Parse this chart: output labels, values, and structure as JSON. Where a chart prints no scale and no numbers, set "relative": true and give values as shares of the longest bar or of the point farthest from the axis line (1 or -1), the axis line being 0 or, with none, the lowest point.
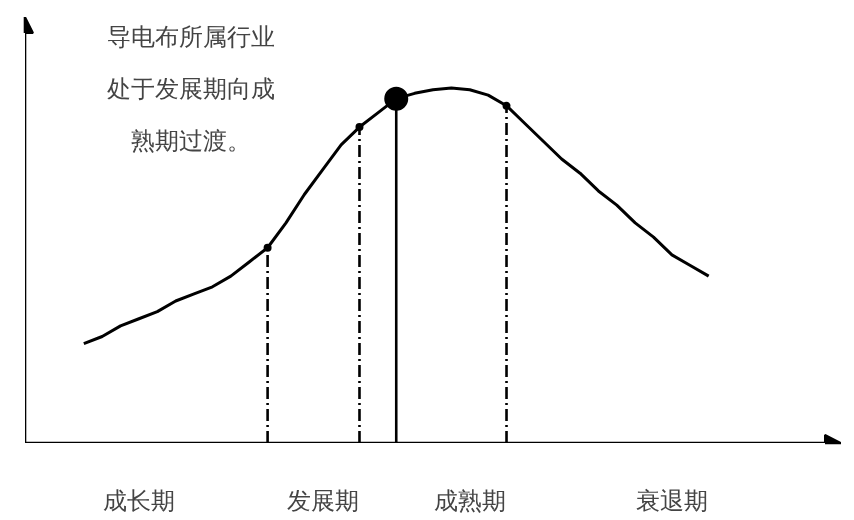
{
  "chart_data": {
    "type": "line",
    "relative": true,
    "categories": [
      null,
      null,
      null,
      "成长期",
      null,
      null,
      null,
      null,
      null,
      null,
      null,
      null,
      null,
      "发展期",
      null,
      null,
      null,
      null,
      null,
      null,
      null,
      "成熟期",
      null,
      null,
      null,
      null,
      null,
      null,
      null,
      null,
      null,
      null,
      "衰退期",
      null,
      null
    ],
    "series": [
      {
        "color": "#000000",
        "line_style": "solid",
        "values": [
          0.28,
          0.3,
          0.33,
          0.35,
          0.37,
          0.4,
          0.42,
          0.44,
          0.47,
          0.51,
          0.55,
          0.62,
          0.7,
          0.77,
          0.84,
          0.89,
          0.93,
          0.97,
          0.985,
          0.995,
          1.0,
          0.995,
          0.98,
          0.95,
          0.9,
          0.85,
          0.8,
          0.76,
          0.71,
          0.67,
          0.62,
          0.58,
          0.53,
          0.5,
          0.47
        ]
      },
      {
        "type": "lollipop",
        "color": "#000000",
        "line_style": "dashed",
        "values": [
          null,
          null,
          null,
          null,
          null,
          null,
          null,
          null,
          null,
          null,
          0.55,
          null,
          null,
          null,
          null,
          0.89,
          null,
          null,
          null,
          null,
          null,
          null,
          null,
          0.95,
          null,
          null,
          null,
          null,
          null,
          null,
          null,
          null,
          null,
          null,
          null
        ]
      },
      {
        "type": "lollipop",
        "color": "#000000",
        "line_style": "solid",
        "marker": "circle",
        "values": [
          null,
          null,
          null,
          null,
          null,
          null,
          null,
          null,
          null,
          null,
          null,
          null,
          null,
          null,
          null,
          null,
          null,
          0.97,
          null,
          null,
          null,
          null,
          null,
          null,
          null,
          null,
          null,
          null,
          null,
          null,
          null,
          null,
          null,
          null,
          null
        ]
      }
    ],
    "annotations": [
      "导电布所属行业处于发展期向成熟期过渡。"
    ]
  }
}
